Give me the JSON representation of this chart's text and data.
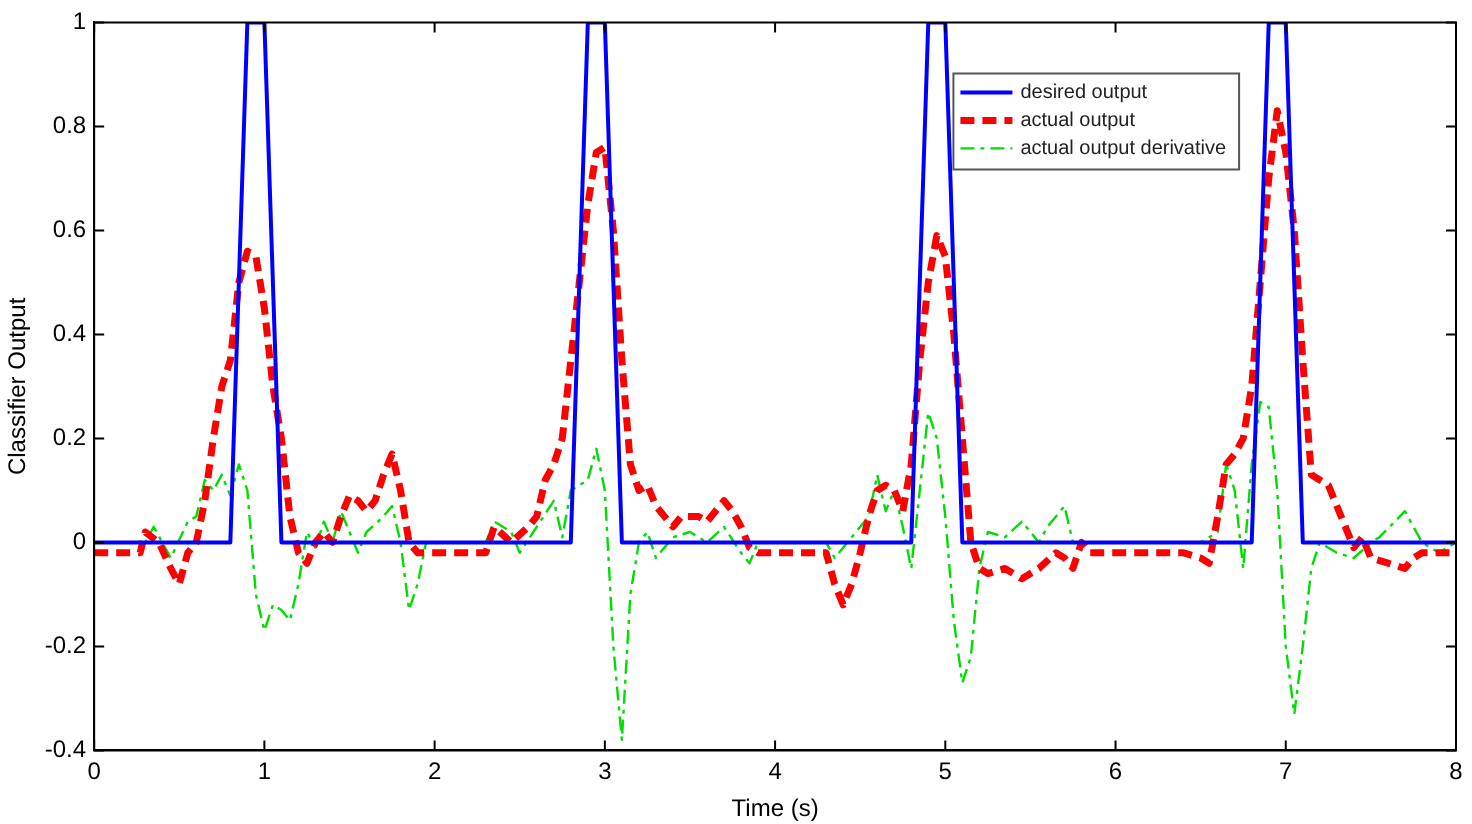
{
  "chart_data": {
    "type": "line",
    "xlabel": "Time (s)",
    "ylabel": "Classifier Output",
    "xlim": [
      0,
      8
    ],
    "xticks": [
      0,
      1,
      2,
      3,
      4,
      5,
      6,
      7,
      8
    ],
    "ylim": [
      -0.4,
      1
    ],
    "yticks": [
      -0.4,
      -0.2,
      0,
      0.2,
      0.4,
      0.6,
      0.8,
      1
    ],
    "grid": false,
    "legend": "top right",
    "marker": "none",
    "series": [
      {
        "name": "desired output",
        "color": "#0000ff",
        "line_style": "solid",
        "x": [
          0,
          0.8,
          0.9,
          1.0,
          1.1,
          2.8,
          2.9,
          3.0,
          3.1,
          4.8,
          4.9,
          5.0,
          5.1,
          6.8,
          6.9,
          7.0,
          7.1,
          8
        ],
        "values": [
          0,
          0,
          1,
          1,
          0,
          0,
          1,
          1,
          0,
          0,
          1,
          1,
          0,
          0,
          1,
          1,
          0,
          0
        ]
      },
      {
        "name": "actual output",
        "color": "#ff0000",
        "line_style": "dashed",
        "x": [
          0,
          0.27,
          0.3,
          0.38,
          0.45,
          0.5,
          0.55,
          0.6,
          0.65,
          0.7,
          0.75,
          0.8,
          0.85,
          0.9,
          0.95,
          1.0,
          1.05,
          1.1,
          1.15,
          1.2,
          1.25,
          1.3,
          1.35,
          1.4,
          1.45,
          1.5,
          1.55,
          1.6,
          1.65,
          1.7,
          1.75,
          1.8,
          1.85,
          1.9,
          2.3,
          2.35,
          2.45,
          2.55,
          2.6,
          2.65,
          2.7,
          2.75,
          2.8,
          2.85,
          2.9,
          2.95,
          3.0,
          3.05,
          3.1,
          3.15,
          3.2,
          3.25,
          3.3,
          3.35,
          3.4,
          3.45,
          3.55,
          3.6,
          3.7,
          3.75,
          3.8,
          3.85,
          3.9,
          4.3,
          4.35,
          4.4,
          4.45,
          4.5,
          4.55,
          4.6,
          4.65,
          4.7,
          4.75,
          4.8,
          4.85,
          4.9,
          4.95,
          5.0,
          5.05,
          5.1,
          5.15,
          5.2,
          5.25,
          5.35,
          5.45,
          5.55,
          5.65,
          5.7,
          5.75,
          5.8,
          5.85,
          6.0,
          6.4,
          6.5,
          6.55,
          6.6,
          6.65,
          6.7,
          6.75,
          6.8,
          6.85,
          6.9,
          6.95,
          7.0,
          7.05,
          7.1,
          7.15,
          7.25,
          7.3,
          7.35,
          7.4,
          7.45,
          7.5,
          7.6,
          7.7,
          7.75,
          7.8,
          8.0
        ],
        "values": [
          -0.02,
          -0.02,
          0.02,
          0,
          -0.05,
          -0.08,
          -0.02,
          0,
          0.08,
          0.2,
          0.3,
          0.35,
          0.5,
          0.56,
          0.55,
          0.45,
          0.3,
          0.2,
          0.05,
          -0.02,
          -0.04,
          0,
          0.02,
          0,
          0.05,
          0.09,
          0.08,
          0.06,
          0.08,
          0.13,
          0.17,
          0.1,
          0,
          -0.02,
          -0.02,
          0.03,
          0,
          0.03,
          0.05,
          0.12,
          0.15,
          0.2,
          0.35,
          0.5,
          0.65,
          0.75,
          0.76,
          0.6,
          0.35,
          0.15,
          0.1,
          0.11,
          0.07,
          0.05,
          0.03,
          0.05,
          0.05,
          0.04,
          0.08,
          0.06,
          0.03,
          -0.01,
          -0.02,
          -0.02,
          -0.08,
          -0.12,
          -0.08,
          -0.02,
          0.05,
          0.1,
          0.11,
          0.1,
          0.06,
          0.15,
          0.35,
          0.5,
          0.59,
          0.55,
          0.4,
          0.2,
          0,
          -0.05,
          -0.06,
          -0.05,
          -0.07,
          -0.05,
          -0.02,
          -0.03,
          -0.05,
          0,
          -0.02,
          -0.02,
          -0.02,
          -0.03,
          -0.04,
          0.05,
          0.15,
          0.17,
          0.2,
          0.3,
          0.5,
          0.7,
          0.83,
          0.75,
          0.6,
          0.35,
          0.13,
          0.11,
          0.07,
          0.03,
          -0.01,
          0.01,
          -0.03,
          -0.04,
          -0.05,
          -0.03,
          -0.02,
          -0.02
        ]
      },
      {
        "name": "actual output derivative",
        "color": "#00dd00",
        "line_style": "dashdot",
        "x": [
          0,
          0.3,
          0.35,
          0.45,
          0.55,
          0.6,
          0.65,
          0.7,
          0.75,
          0.8,
          0.85,
          0.9,
          0.95,
          1.0,
          1.05,
          1.1,
          1.15,
          1.2,
          1.25,
          1.3,
          1.35,
          1.4,
          1.45,
          1.5,
          1.55,
          1.6,
          1.7,
          1.75,
          1.8,
          1.85,
          1.9,
          1.95,
          2.3,
          2.35,
          2.45,
          2.5,
          2.6,
          2.7,
          2.75,
          2.8,
          2.9,
          2.95,
          3.0,
          3.05,
          3.1,
          3.15,
          3.2,
          3.25,
          3.3,
          3.4,
          3.5,
          3.6,
          3.7,
          3.8,
          3.85,
          3.9,
          4.3,
          4.35,
          4.45,
          4.55,
          4.6,
          4.65,
          4.7,
          4.75,
          4.8,
          4.85,
          4.9,
          4.95,
          5.0,
          5.05,
          5.1,
          5.15,
          5.2,
          5.25,
          5.35,
          5.45,
          5.55,
          5.6,
          5.7,
          5.75,
          5.8,
          6.0,
          6.5,
          6.6,
          6.65,
          6.7,
          6.75,
          6.8,
          6.85,
          6.9,
          6.95,
          7.0,
          7.05,
          7.1,
          7.15,
          7.2,
          7.3,
          7.4,
          7.5,
          7.55,
          7.7,
          7.75,
          7.8,
          7.9,
          8.0
        ],
        "values": [
          0,
          0,
          0.03,
          -0.03,
          0.04,
          0.05,
          0.12,
          0.1,
          0.13,
          0.09,
          0.15,
          0.1,
          -0.1,
          -0.17,
          -0.12,
          -0.13,
          -0.15,
          -0.08,
          0.02,
          -0.01,
          0.04,
          0,
          0.06,
          0.02,
          -0.02,
          0.02,
          0.05,
          0.07,
          0,
          -0.13,
          -0.08,
          0,
          0,
          0.04,
          0.02,
          -0.02,
          0.03,
          0.08,
          0.01,
          0.1,
          0.12,
          0.18,
          0.1,
          -0.2,
          -0.38,
          -0.1,
          0,
          0.02,
          -0.03,
          0.01,
          0.02,
          0,
          0.03,
          -0.02,
          -0.04,
          0,
          0,
          -0.03,
          0.01,
          0.05,
          0.13,
          0.06,
          0.1,
          0.03,
          -0.05,
          0.1,
          0.25,
          0.2,
          0.05,
          -0.15,
          -0.27,
          -0.22,
          -0.05,
          0.02,
          0.01,
          0.04,
          0,
          0.03,
          0.07,
          0,
          0,
          0,
          0,
          0.02,
          0.15,
          0.1,
          -0.05,
          0.15,
          0.27,
          0.26,
          0.1,
          -0.2,
          -0.33,
          -0.2,
          -0.05,
          0,
          -0.02,
          -0.03,
          0,
          0.01,
          0.06,
          0.03,
          0,
          -0.02,
          0
        ]
      }
    ]
  }
}
